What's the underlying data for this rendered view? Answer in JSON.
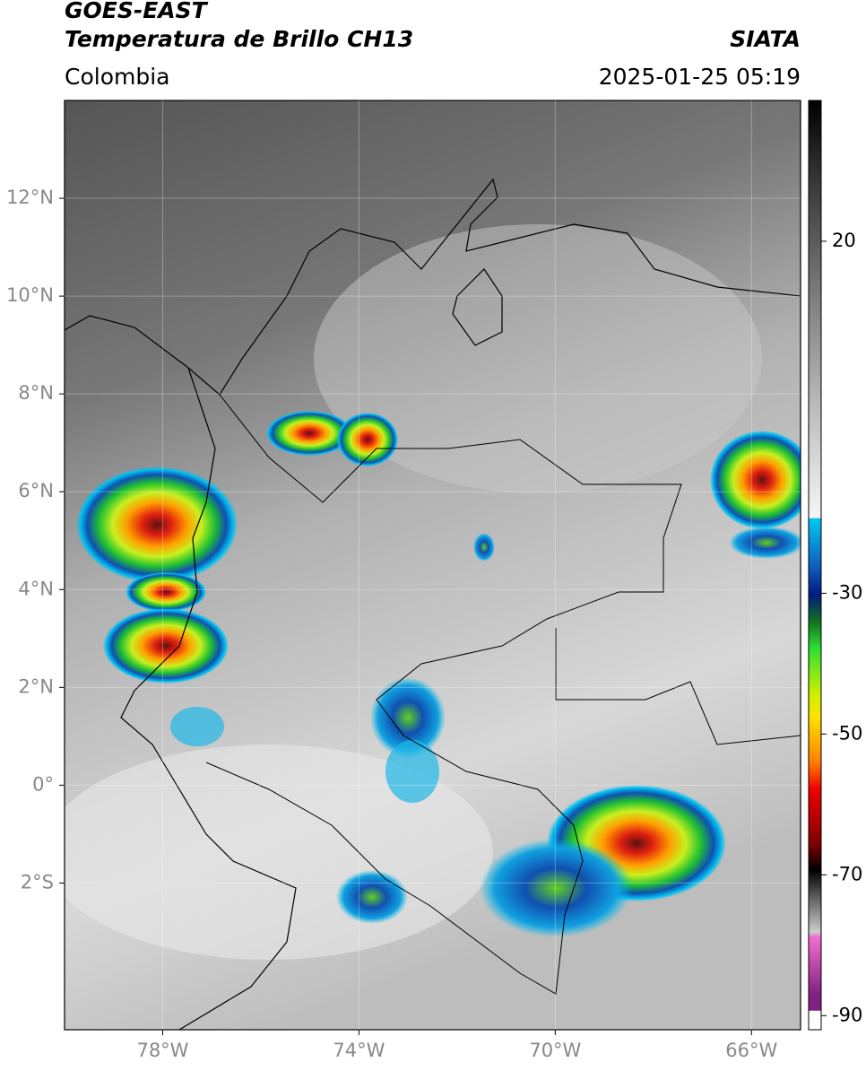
{
  "header": {
    "title": "GOES-EAST",
    "subtitle": "Temperatura de Brillo CH13",
    "source": "SIATA",
    "region": "Colombia",
    "timestamp": "2025-01-25 05:19"
  },
  "map": {
    "xlim": [
      -80,
      -65
    ],
    "ylim": [
      -5,
      14
    ],
    "grid": true,
    "xticks": [
      {
        "value": -78,
        "label": "78°W"
      },
      {
        "value": -74,
        "label": "74°W"
      },
      {
        "value": -70,
        "label": "70°W"
      },
      {
        "value": -66,
        "label": "66°W"
      }
    ],
    "yticks": [
      {
        "value": 12,
        "label": "12°N"
      },
      {
        "value": 10,
        "label": "10°N"
      },
      {
        "value": 8,
        "label": "8°N"
      },
      {
        "value": 6,
        "label": "6°N"
      },
      {
        "value": 4,
        "label": "4°N"
      },
      {
        "value": 2,
        "label": "2°N"
      },
      {
        "value": 0,
        "label": "0°"
      },
      {
        "value": -2,
        "label": "2°S"
      }
    ]
  },
  "colorbar": {
    "lim": [
      -92,
      40
    ],
    "ticks": [
      20,
      -30,
      -50,
      -70,
      -90
    ]
  }
}
